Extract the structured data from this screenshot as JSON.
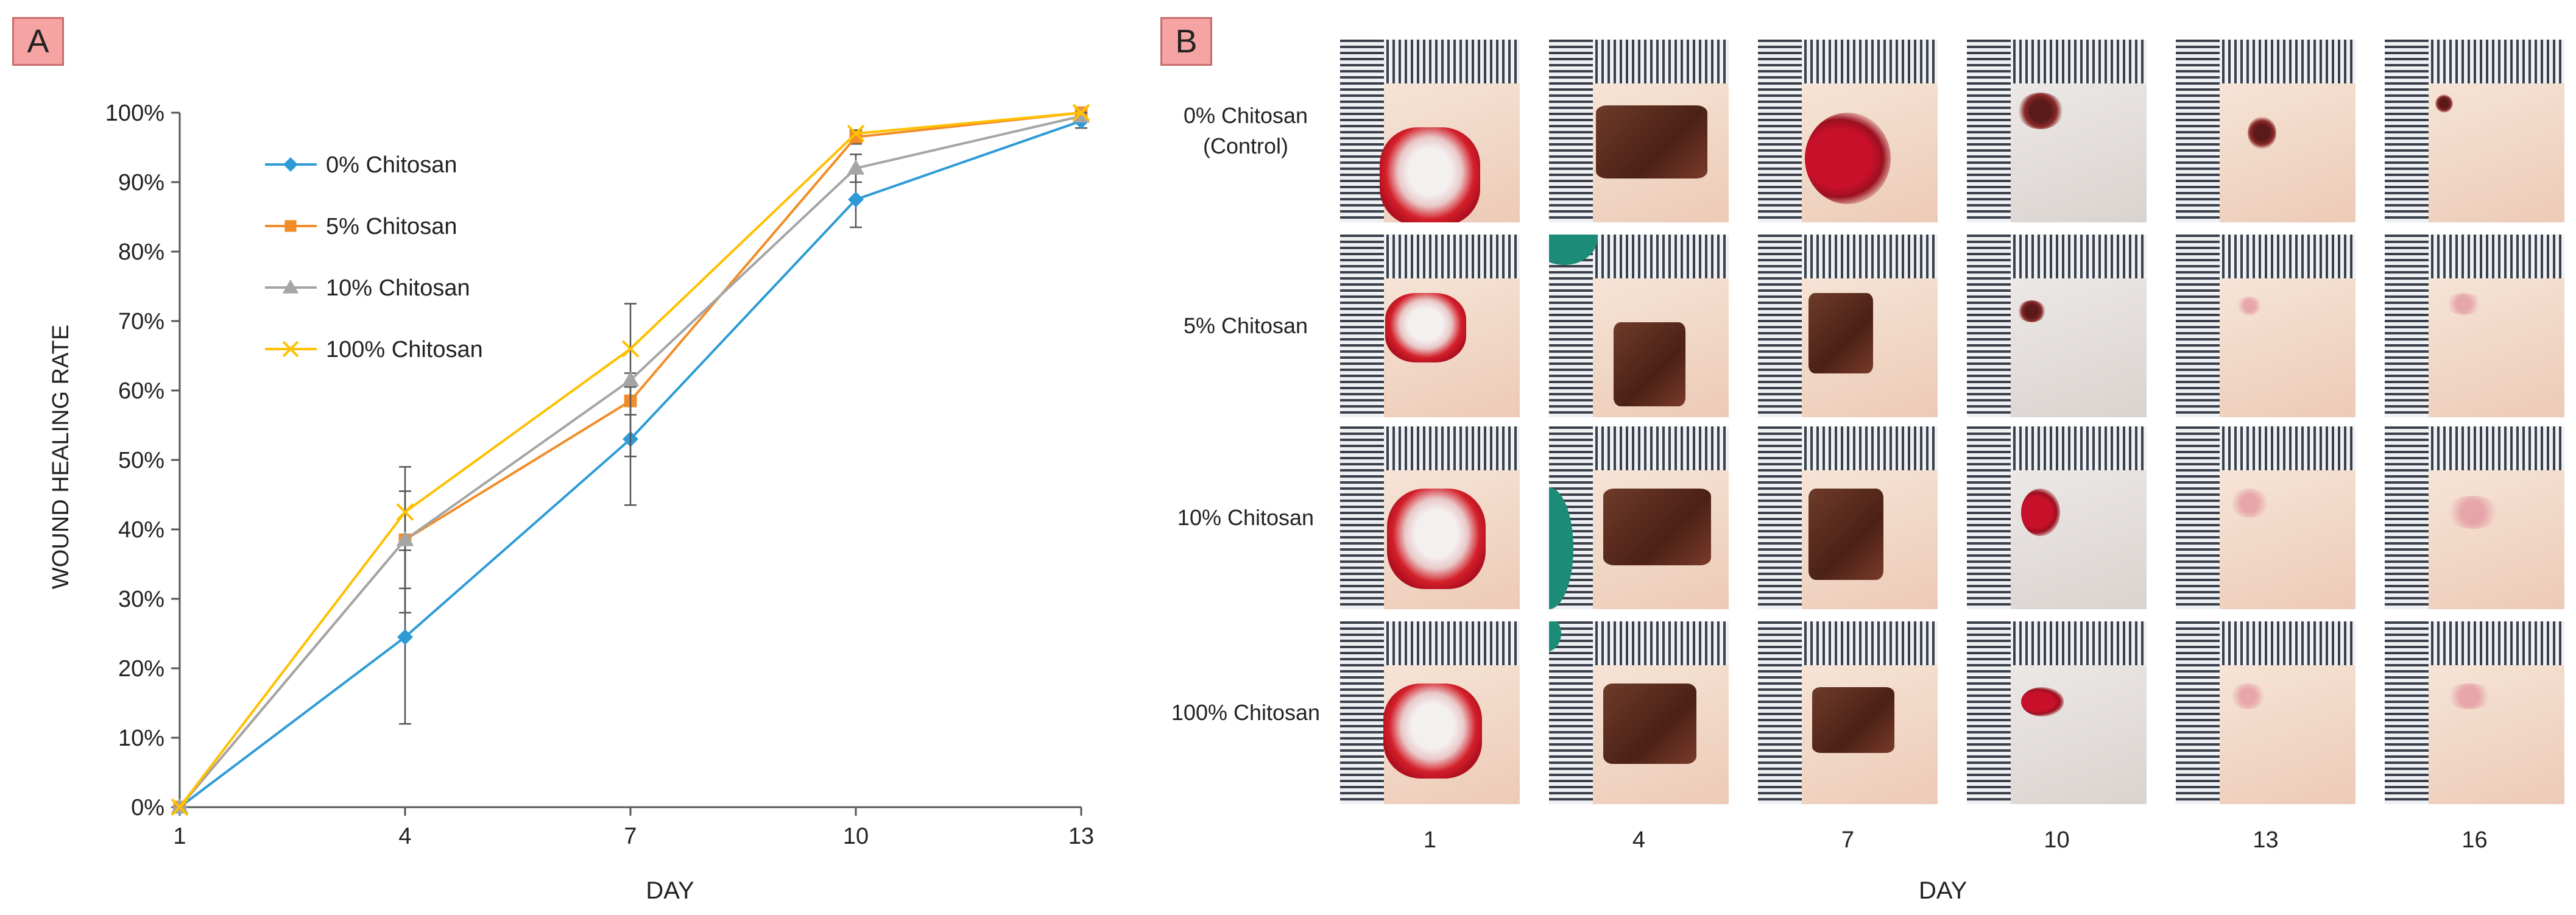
{
  "panels": {
    "a_label": "A",
    "b_label": "B"
  },
  "chart_data": {
    "type": "line",
    "ylabel": "WOUND HEALING RATE",
    "xlabel": "DAY",
    "x": [
      1,
      4,
      7,
      10,
      13
    ],
    "x_tick_labels": [
      "1",
      "4",
      "7",
      "10",
      "13"
    ],
    "ylim": [
      0,
      100
    ],
    "y_tick_labels": [
      "0%",
      "10%",
      "20%",
      "30%",
      "40%",
      "50%",
      "60%",
      "70%",
      "80%",
      "90%",
      "100%"
    ],
    "legend_position": "top-left",
    "series": [
      {
        "name": "0% Chitosan",
        "marker": "diamond",
        "color": "#2e9bd6",
        "values": [
          0,
          24.5,
          53,
          87.5,
          98.8
        ],
        "errors": [
          0,
          12.5,
          9.5,
          4,
          1
        ]
      },
      {
        "name": "5% Chitosan",
        "marker": "square",
        "color": "#f28c28",
        "values": [
          0,
          38.5,
          58.5,
          96.5,
          100
        ],
        "errors": [
          0,
          7,
          2,
          1,
          0.3
        ]
      },
      {
        "name": "10% Chitosan",
        "marker": "triangle",
        "color": "#a5a5a5",
        "values": [
          0,
          38.5,
          61.5,
          92,
          99.5
        ],
        "errors": [
          0,
          10.5,
          11,
          2,
          0.5
        ]
      },
      {
        "name": "100% Chitosan",
        "marker": "x",
        "color": "#ffc000",
        "values": [
          0,
          42.5,
          66,
          97,
          100
        ],
        "errors": [
          0,
          0,
          0,
          0,
          0
        ]
      }
    ]
  },
  "photo_grid": {
    "rows": [
      {
        "label_line1": "0% Chitosan",
        "label_line2": "(Control)"
      },
      {
        "label_line1": "5% Chitosan",
        "label_line2": ""
      },
      {
        "label_line1": "10% Chitosan",
        "label_line2": ""
      },
      {
        "label_line1": "100% Chitosan",
        "label_line2": ""
      }
    ],
    "days": [
      "1",
      "4",
      "7",
      "10",
      "13",
      "16"
    ],
    "xlabel": "DAY"
  }
}
